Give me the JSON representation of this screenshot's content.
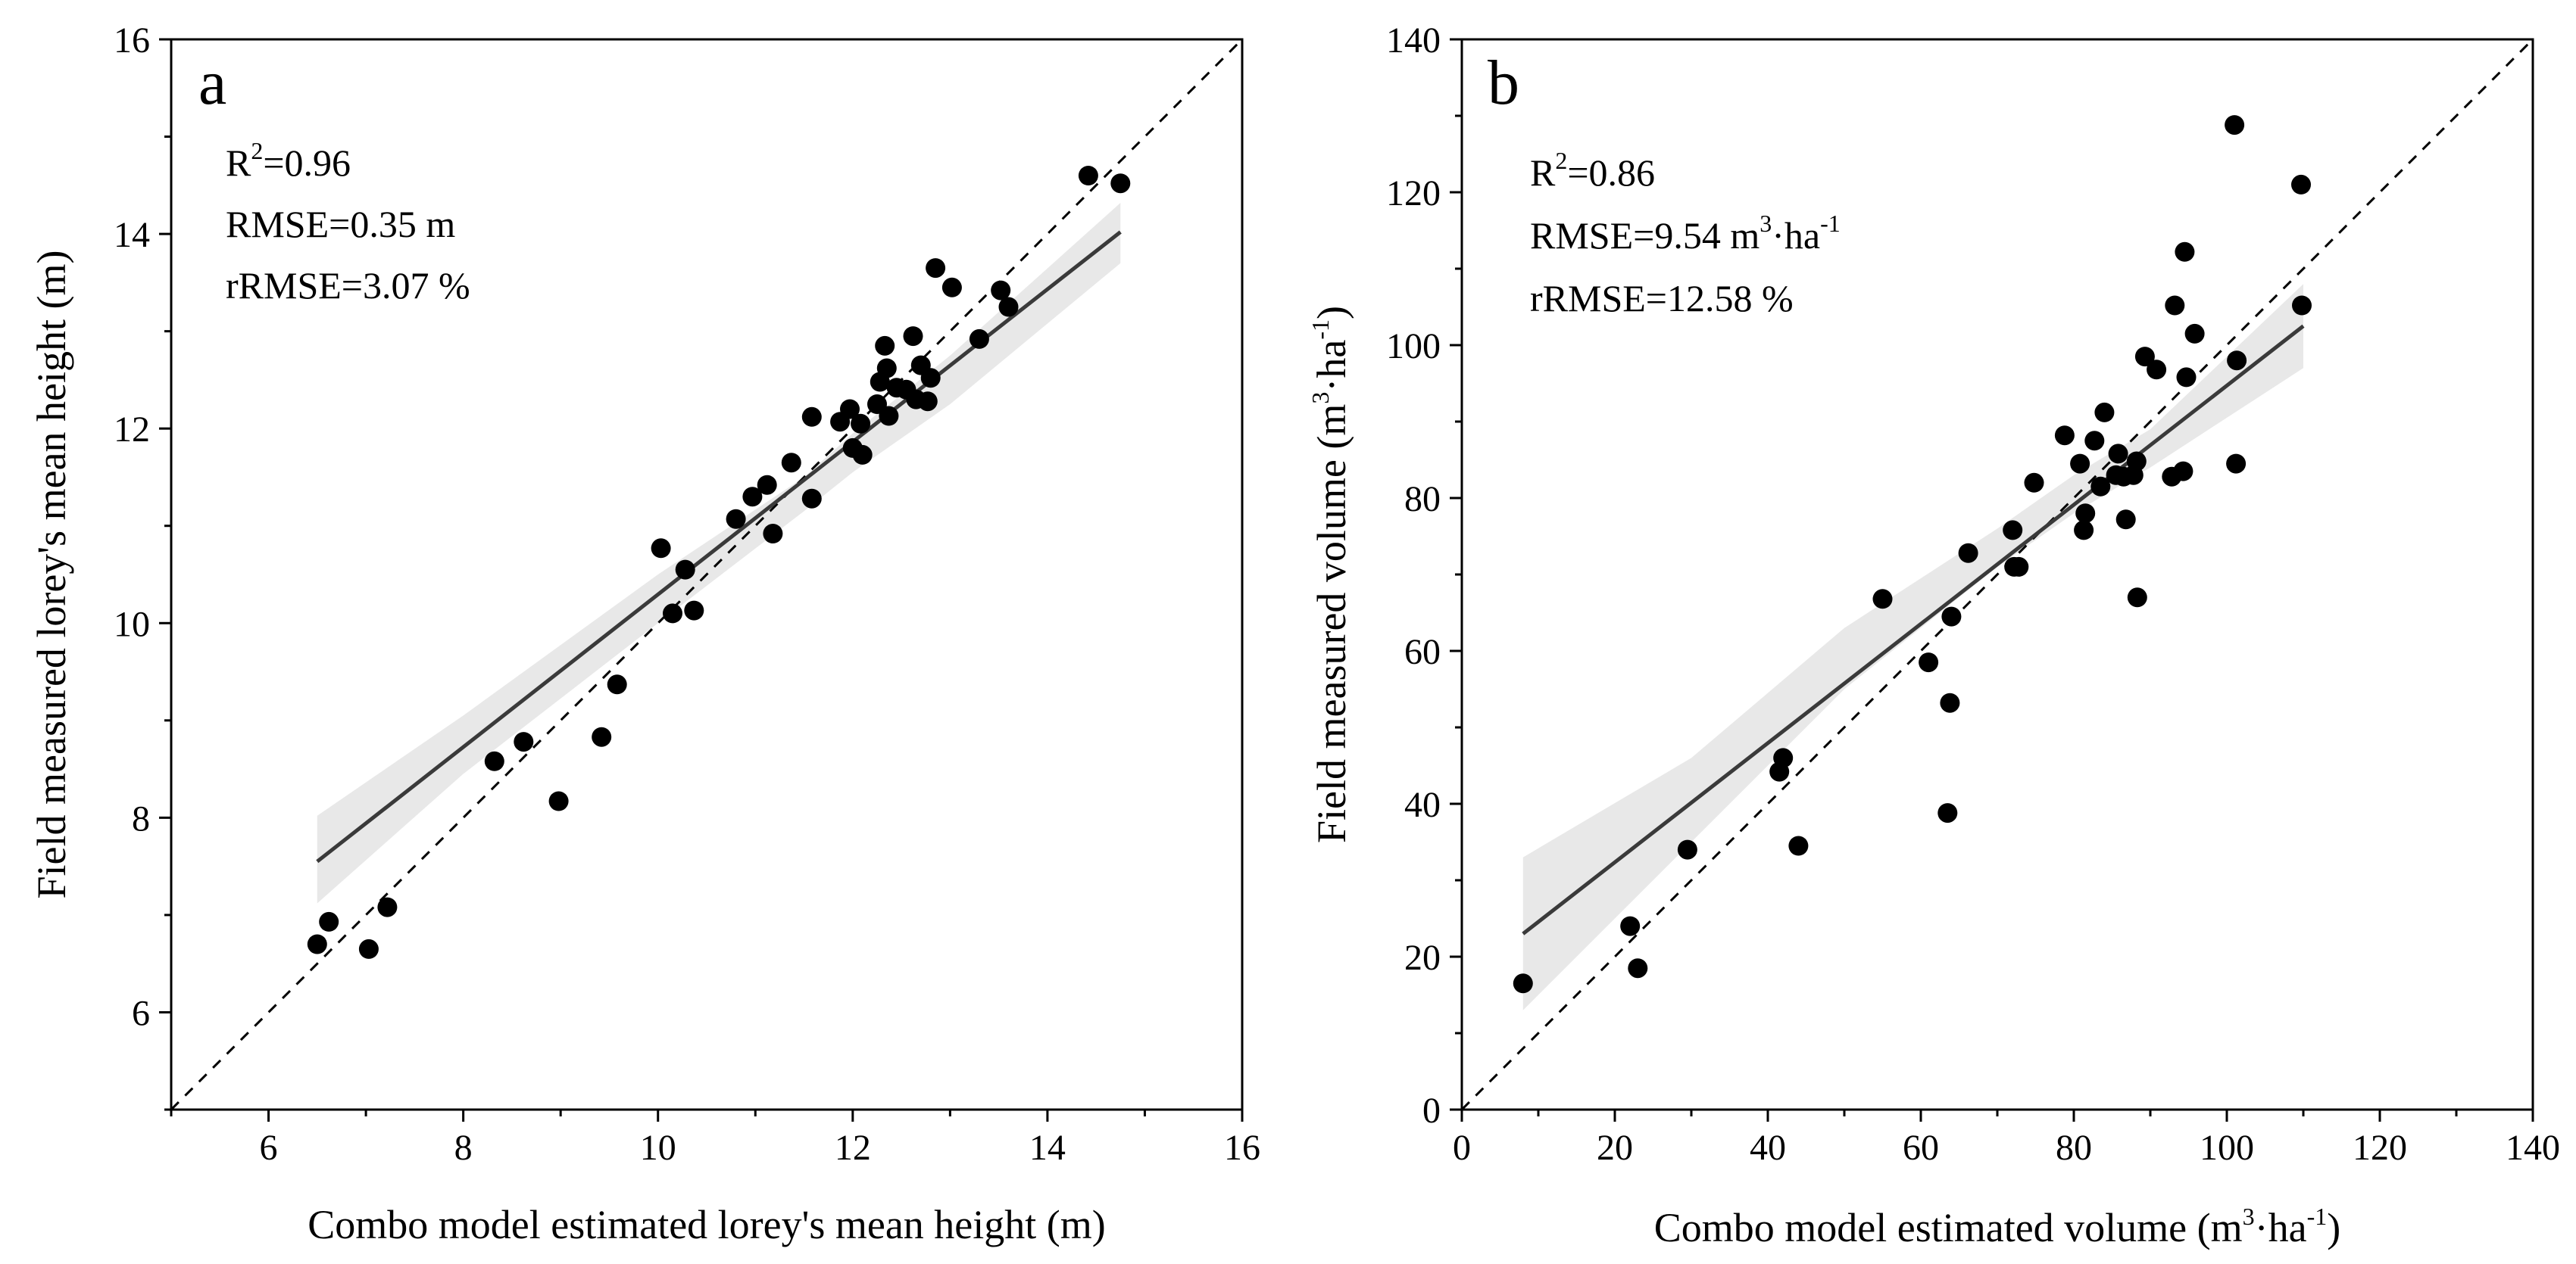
{
  "chart_data": [
    {
      "type": "scatter",
      "panel_label": "a",
      "xlabel": "Combo model estimated lorey's mean height (m)",
      "ylabel": "Field measured lorey's mean height (m)",
      "xlim": [
        5,
        16
      ],
      "ylim": [
        5,
        16
      ],
      "xticks": [
        6,
        8,
        10,
        12,
        14,
        16
      ],
      "yticks": [
        6,
        8,
        10,
        12,
        14,
        16
      ],
      "stats": [
        {
          "base": "R",
          "sup": "2",
          "rest": "=0.96"
        },
        {
          "base": "RMSE=0.35 m",
          "sup": "",
          "rest": ""
        },
        {
          "base": "rRMSE=3.07 %",
          "sup": "",
          "rest": ""
        }
      ],
      "fit_line": {
        "x": [
          6.5,
          14.75
        ],
        "y": [
          7.55,
          14.02
        ]
      },
      "confidence_band": {
        "x": [
          6.5,
          8.0,
          10.0,
          11.5,
          12.0,
          13.0,
          14.75
        ],
        "lower": [
          7.12,
          8.45,
          10.0,
          11.15,
          11.55,
          12.25,
          13.7
        ],
        "upper": [
          8.02,
          9.05,
          10.5,
          11.5,
          11.95,
          12.75,
          14.32
        ]
      },
      "reference_line": "1:1",
      "series": [
        {
          "points": [
            [
              6.5,
              6.7
            ],
            [
              6.62,
              6.93
            ],
            [
              7.03,
              6.65
            ],
            [
              7.22,
              7.08
            ],
            [
              8.32,
              8.58
            ],
            [
              8.62,
              8.78
            ],
            [
              8.98,
              8.17
            ],
            [
              9.42,
              8.83
            ],
            [
              9.58,
              9.37
            ],
            [
              10.03,
              10.77
            ],
            [
              10.15,
              10.1
            ],
            [
              10.28,
              10.55
            ],
            [
              10.37,
              10.13
            ],
            [
              10.8,
              11.07
            ],
            [
              10.97,
              11.3
            ],
            [
              11.12,
              11.42
            ],
            [
              11.18,
              10.92
            ],
            [
              11.37,
              11.65
            ],
            [
              11.58,
              11.28
            ],
            [
              11.58,
              12.12
            ],
            [
              11.87,
              12.07
            ],
            [
              11.97,
              12.2
            ],
            [
              12.0,
              11.8
            ],
            [
              12.08,
              12.05
            ],
            [
              12.1,
              11.73
            ],
            [
              12.25,
              12.25
            ],
            [
              12.28,
              12.48
            ],
            [
              12.33,
              12.85
            ],
            [
              12.35,
              12.62
            ],
            [
              12.37,
              12.13
            ],
            [
              12.45,
              12.42
            ],
            [
              12.55,
              12.4
            ],
            [
              12.62,
              12.95
            ],
            [
              12.65,
              12.3
            ],
            [
              12.7,
              12.65
            ],
            [
              12.77,
              12.28
            ],
            [
              12.8,
              12.52
            ],
            [
              12.85,
              13.65
            ],
            [
              13.02,
              13.45
            ],
            [
              13.3,
              12.92
            ],
            [
              13.52,
              13.42
            ],
            [
              13.6,
              13.25
            ],
            [
              14.42,
              14.6
            ],
            [
              14.75,
              14.52
            ]
          ]
        }
      ]
    },
    {
      "type": "scatter",
      "panel_label": "b",
      "xlabel": {
        "base": "Combo model estimated volume (m",
        "sup1": "3",
        "mid": "·ha",
        "sup2": "-1",
        "end": ")"
      },
      "ylabel": {
        "base": "Field measured volume (m",
        "sup1": "3",
        "mid": "·ha",
        "sup2": "-1",
        "end": ")"
      },
      "xlim": [
        0,
        140
      ],
      "ylim": [
        0,
        140
      ],
      "xticks": [
        0,
        20,
        40,
        60,
        80,
        100,
        120,
        140
      ],
      "yticks": [
        0,
        20,
        40,
        60,
        80,
        100,
        120,
        140
      ],
      "stats": [
        {
          "base": "R",
          "sup": "2",
          "rest": "=0.86"
        },
        {
          "base": "RMSE=9.54 m",
          "sup": "3",
          "rest": "·ha",
          "sup2": "-1"
        },
        {
          "base": "rRMSE=12.58 %",
          "sup": "",
          "rest": ""
        }
      ],
      "fit_line": {
        "x": [
          8,
          110
        ],
        "y": [
          23,
          102.5
        ]
      },
      "confidence_band": {
        "x": [
          8,
          30,
          50,
          70,
          80,
          90,
          110
        ],
        "lower": [
          13,
          35,
          55,
          71,
          78,
          84,
          97
        ],
        "upper": [
          33,
          46,
          63,
          76,
          83,
          89,
          108
        ]
      },
      "reference_line": "1:1",
      "series": [
        {
          "points": [
            [
              8,
              16.5
            ],
            [
              22,
              24
            ],
            [
              23,
              18.5
            ],
            [
              29.5,
              34
            ],
            [
              41.5,
              44.2
            ],
            [
              42,
              46
            ],
            [
              44,
              34.5
            ],
            [
              55,
              66.8
            ],
            [
              61,
              58.5
            ],
            [
              63.5,
              38.8
            ],
            [
              63.8,
              53.2
            ],
            [
              64,
              64.5
            ],
            [
              66.2,
              72.8
            ],
            [
              72,
              75.8
            ],
            [
              72.2,
              71
            ],
            [
              72.8,
              71
            ],
            [
              74.8,
              82
            ],
            [
              78.8,
              88.2
            ],
            [
              80.8,
              84.5
            ],
            [
              81.3,
              75.8
            ],
            [
              81.5,
              78
            ],
            [
              82.7,
              87.5
            ],
            [
              83.5,
              81.5
            ],
            [
              84,
              91.2
            ],
            [
              85.5,
              83
            ],
            [
              85.8,
              85.8
            ],
            [
              86.5,
              82.8
            ],
            [
              86.8,
              77.2
            ],
            [
              87.8,
              83
            ],
            [
              88.2,
              84.8
            ],
            [
              88.3,
              67
            ],
            [
              89.3,
              98.5
            ],
            [
              90.8,
              96.8
            ],
            [
              92.8,
              82.8
            ],
            [
              93.2,
              105.2
            ],
            [
              94.3,
              83.5
            ],
            [
              94.5,
              112.2
            ],
            [
              94.7,
              95.8
            ],
            [
              95.8,
              101.5
            ],
            [
              101,
              128.8
            ],
            [
              101.2,
              84.5
            ],
            [
              101.3,
              98
            ],
            [
              109.7,
              121
            ],
            [
              109.8,
              105.2
            ]
          ]
        }
      ]
    }
  ]
}
